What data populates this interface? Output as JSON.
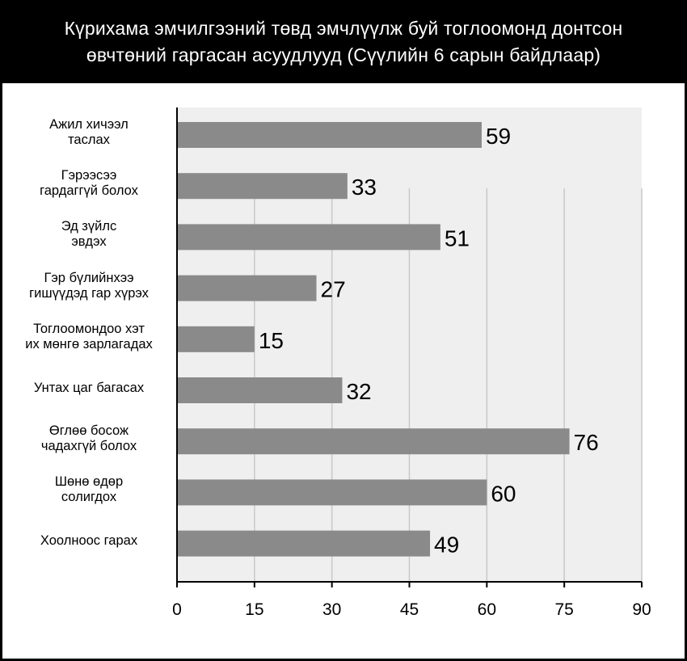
{
  "header": {
    "title_line1": "Күрихама эмчилгээний төвд эмчлүүлж буй тоглоомонд донтсон",
    "title_line2": "өвчтөний гаргасан асуудлууд (Сүүлийн 6 сарын байдлаар)"
  },
  "colors": {
    "background": "#000000",
    "plot_area": "#efefef",
    "bar": "#8a8a8a",
    "grid": "#c8c8c8",
    "axis": "#000000",
    "text": "#000000",
    "title_text": "#ffffff"
  },
  "chart_data": {
    "type": "bar",
    "orientation": "horizontal",
    "title": "Күрихама эмчилгээний төвд эмчлүүлж буй тоглоомонд донтсон өвчтөний гаргасан асуудлууд (Сүүлийн 6 сарын байдлаар)",
    "categories": [
      [
        "Ажил хичээл",
        "таслах"
      ],
      [
        "Гэрээсээ",
        "гардаггүй болох"
      ],
      [
        "Эд зүйлс",
        "эвдэх"
      ],
      [
        "Гэр бүлийнхээ",
        "гишүүдэд гар хүрэх"
      ],
      [
        "Тоглоомондоо хэт",
        "их мөнгө зарлагадах"
      ],
      [
        "Унтах цаг багасах"
      ],
      [
        "Өглөө босож",
        "чадахгүй болох"
      ],
      [
        "Шөнө өдөр",
        "солигдох"
      ],
      [
        "Хоолноос гарах"
      ]
    ],
    "values": [
      59,
      33,
      51,
      27,
      15,
      32,
      76,
      60,
      49
    ],
    "value_labels": [
      "59",
      "33",
      "51",
      "27",
      "15",
      "32",
      "76",
      "60",
      "49"
    ],
    "xlim": [
      0,
      90
    ],
    "xticks": [
      0,
      15,
      30,
      45,
      60,
      75,
      90
    ],
    "xtick_labels": [
      "0",
      "15",
      "30",
      "45",
      "60",
      "75",
      "90"
    ],
    "grid": "vertical",
    "xlabel": "",
    "ylabel": ""
  }
}
